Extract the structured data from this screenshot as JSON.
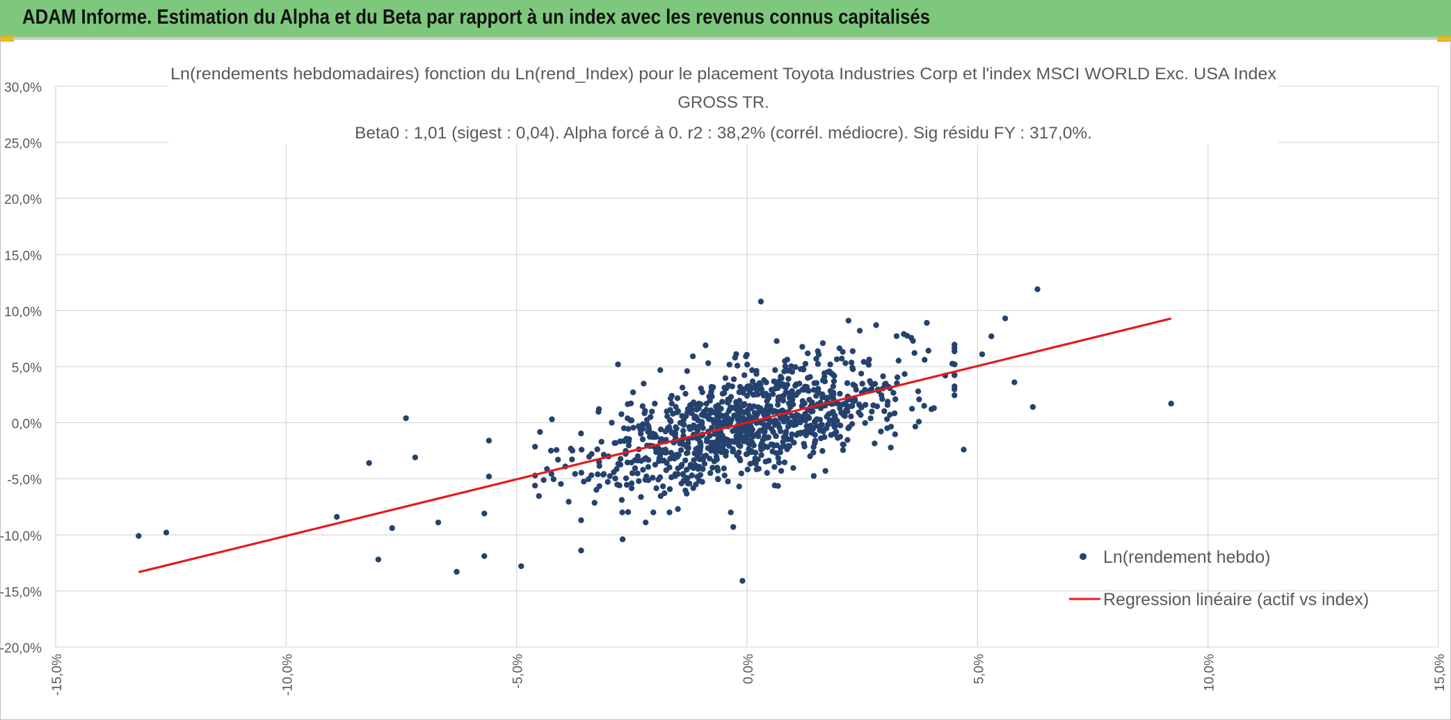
{
  "header": {
    "title": "ADAM Informe. Estimation du Alpha et du Beta par rapport à un index avec les revenus connus capitalisés"
  },
  "chart_data": {
    "type": "scatter",
    "title": [
      "Ln(rendements hebdomadaires) fonction du Ln(rend_Index) pour le placement Toyota Industries Corp et l'index MSCI WORLD Exc. USA Index",
      "GROSS TR.",
      "Beta0 : 1,01 (sigest : 0,04). Alpha forcé à 0. r2 : 38,2% (corrél. médiocre). Sig résidu FY : 317,0%."
    ],
    "xlabel": "",
    "ylabel": "",
    "xlim": [
      -0.15,
      0.15
    ],
    "ylim": [
      -0.2,
      0.3
    ],
    "x_ticks": [
      {
        "v": -0.15,
        "label": "-15,0%"
      },
      {
        "v": -0.1,
        "label": "-10,0%"
      },
      {
        "v": -0.05,
        "label": "-5,0%"
      },
      {
        "v": 0.0,
        "label": "0,0%"
      },
      {
        "v": 0.05,
        "label": "5,0%"
      },
      {
        "v": 0.1,
        "label": "10,0%"
      },
      {
        "v": 0.15,
        "label": "15,0%"
      }
    ],
    "y_ticks": [
      {
        "v": 0.3,
        "label": "30,0%"
      },
      {
        "v": 0.25,
        "label": "25,0%"
      },
      {
        "v": 0.2,
        "label": "20,0%"
      },
      {
        "v": 0.15,
        "label": "15,0%"
      },
      {
        "v": 0.1,
        "label": "10,0%"
      },
      {
        "v": 0.05,
        "label": "5,0%"
      },
      {
        "v": 0.0,
        "label": "0,0%"
      },
      {
        "v": -0.05,
        "label": "-5,0%"
      },
      {
        "v": -0.1,
        "label": "-10,0%"
      },
      {
        "v": -0.15,
        "label": "-15,0%"
      },
      {
        "v": -0.2,
        "label": "-20,0%"
      }
    ],
    "grid": true,
    "legend_position": "bottom-right",
    "series": [
      {
        "name": "Ln(rendement hebdo)",
        "kind": "scatter",
        "color": "#25426f",
        "outliers": [
          [
            -0.132,
            -0.101
          ],
          [
            -0.126,
            -0.098
          ],
          [
            -0.082,
            -0.036
          ],
          [
            -0.074,
            0.004
          ],
          [
            -0.072,
            -0.031
          ],
          [
            -0.089,
            -0.084
          ],
          [
            -0.08,
            -0.122
          ],
          [
            -0.077,
            -0.094
          ],
          [
            -0.067,
            -0.089
          ],
          [
            -0.063,
            -0.133
          ],
          [
            -0.057,
            -0.119
          ],
          [
            -0.057,
            -0.081
          ],
          [
            -0.049,
            -0.128
          ],
          [
            -0.056,
            -0.016
          ],
          [
            -0.056,
            -0.048
          ],
          [
            -0.036,
            -0.114
          ],
          [
            -0.036,
            -0.087
          ],
          [
            -0.027,
            -0.104
          ],
          [
            -0.028,
            0.052
          ],
          [
            -0.022,
            -0.089
          ],
          [
            -0.015,
            -0.077
          ],
          [
            -0.003,
            -0.093
          ],
          [
            -0.001,
            -0.141
          ],
          [
            0.003,
            0.108
          ],
          [
            0.006,
            -0.056
          ],
          [
            0.017,
            -0.043
          ],
          [
            0.022,
            0.091
          ],
          [
            0.028,
            0.087
          ],
          [
            0.034,
            0.079
          ],
          [
            0.039,
            0.089
          ],
          [
            0.045,
            0.052
          ],
          [
            0.047,
            -0.024
          ],
          [
            0.051,
            0.061
          ],
          [
            0.053,
            0.077
          ],
          [
            0.056,
            0.093
          ],
          [
            0.058,
            0.036
          ],
          [
            0.062,
            0.014
          ],
          [
            0.063,
            0.119
          ],
          [
            0.092,
            0.017
          ],
          [
            0.04,
            0.012
          ],
          [
            0.043,
            0.042
          ],
          [
            -0.009,
            0.069
          ],
          [
            -0.013,
            0.046
          ]
        ],
        "cloud": {
          "count": 1050,
          "beta": 1.01,
          "x_center": 0.0,
          "x_std": 0.0175,
          "residual_std": 0.0235,
          "x_range": [
            -0.046,
            0.045
          ],
          "y_range": [
            -0.08,
            0.082
          ]
        }
      },
      {
        "name": "Regression linéaire (actif vs index)",
        "kind": "line",
        "color": "#e8191c",
        "x": [
          -0.132,
          0.092
        ],
        "y": [
          -0.1333,
          0.0929
        ]
      }
    ]
  }
}
